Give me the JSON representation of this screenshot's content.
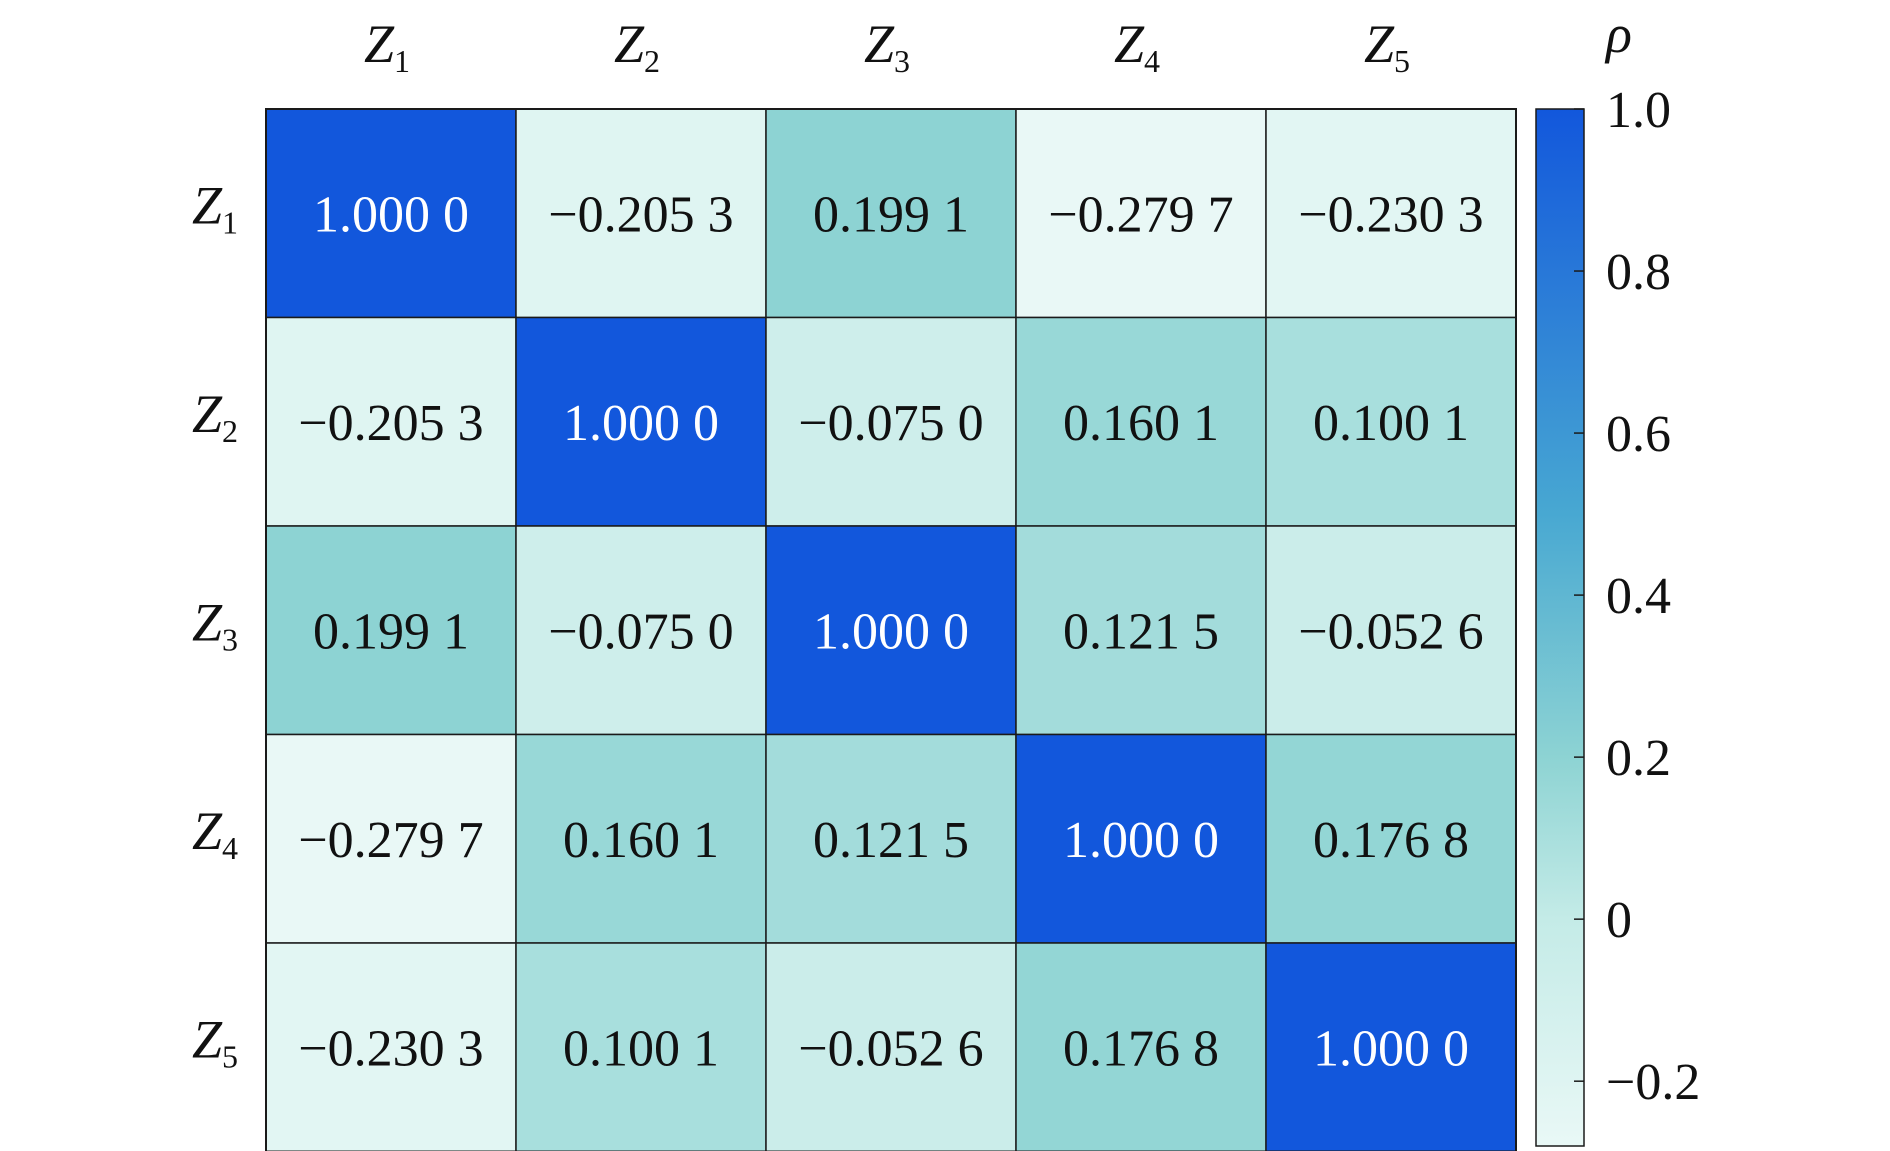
{
  "chart_data": {
    "type": "heatmap",
    "row_labels": [
      {
        "base": "Z",
        "sub": "1"
      },
      {
        "base": "Z",
        "sub": "2"
      },
      {
        "base": "Z",
        "sub": "3"
      },
      {
        "base": "Z",
        "sub": "4"
      },
      {
        "base": "Z",
        "sub": "5"
      }
    ],
    "col_labels": [
      {
        "base": "Z",
        "sub": "1"
      },
      {
        "base": "Z",
        "sub": "2"
      },
      {
        "base": "Z",
        "sub": "3"
      },
      {
        "base": "Z",
        "sub": "4"
      },
      {
        "base": "Z",
        "sub": "5"
      }
    ],
    "values": [
      [
        1.0,
        -0.2053,
        0.1991,
        -0.2797,
        -0.2303
      ],
      [
        -0.2053,
        1.0,
        -0.075,
        0.1601,
        0.1001
      ],
      [
        0.1991,
        -0.075,
        1.0,
        0.1215,
        -0.0526
      ],
      [
        -0.2797,
        0.1601,
        0.1215,
        1.0,
        0.1768
      ],
      [
        -0.2303,
        0.1001,
        -0.0526,
        0.1768,
        1.0
      ]
    ],
    "value_labels": [
      [
        "1.000 0",
        "−0.205 3",
        "0.199 1",
        "−0.279 7",
        "−0.230 3"
      ],
      [
        "−0.205 3",
        "1.000 0",
        "−0.075 0",
        "0.160 1",
        "0.100 1"
      ],
      [
        "0.199 1",
        "−0.075 0",
        "1.000 0",
        "0.121 5",
        "−0.052 6"
      ],
      [
        "−0.279 7",
        "0.160 1",
        "0.121 5",
        "1.000 0",
        "0.176 8"
      ],
      [
        "−0.230 3",
        "0.100 1",
        "−0.052 6",
        "0.176 8",
        "1.000 0"
      ]
    ],
    "colorbar": {
      "title": "ρ",
      "range": [
        -0.28,
        1.0
      ],
      "ticks": [
        {
          "value": 1.0,
          "label": "1.0"
        },
        {
          "value": 0.8,
          "label": "0.8"
        },
        {
          "value": 0.6,
          "label": "0.6"
        },
        {
          "value": 0.4,
          "label": "0.4"
        },
        {
          "value": 0.2,
          "label": "0.2"
        },
        {
          "value": 0.0,
          "label": "0"
        },
        {
          "value": -0.2,
          "label": "−0.2"
        }
      ],
      "stops": [
        {
          "value": -0.28,
          "color": "#e9f8f6"
        },
        {
          "value": 0.0,
          "color": "#c4ebe7"
        },
        {
          "value": 0.2,
          "color": "#8dd3d3"
        },
        {
          "value": 0.5,
          "color": "#48a8d2"
        },
        {
          "value": 1.0,
          "color": "#1257dc"
        }
      ],
      "text_dark": "#111111",
      "text_light": "#ffffff"
    }
  }
}
